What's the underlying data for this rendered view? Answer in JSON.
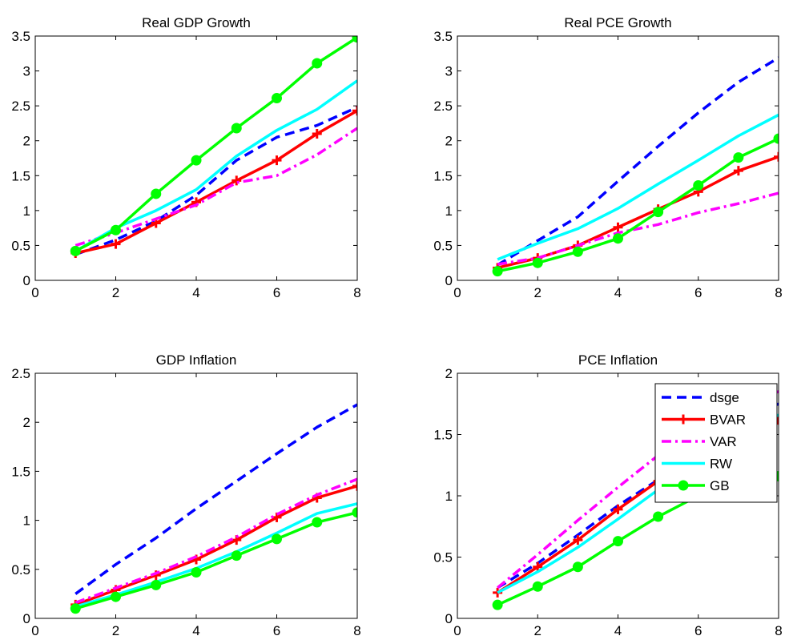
{
  "chart_data": [
    {
      "type": "line",
      "title": "Real GDP Growth",
      "x": [
        1,
        2,
        3,
        4,
        5,
        6,
        7,
        8
      ],
      "xlim": [
        0,
        8
      ],
      "ylim": [
        0,
        3.5
      ],
      "xticks": [
        0,
        2,
        4,
        6,
        8
      ],
      "yticks": [
        0,
        0.5,
        1,
        1.5,
        2,
        2.5,
        3,
        3.5
      ],
      "series": [
        {
          "key": "dsge",
          "values": [
            0.37,
            0.58,
            0.85,
            1.22,
            1.72,
            2.05,
            2.22,
            2.48
          ]
        },
        {
          "key": "BVAR",
          "values": [
            0.39,
            0.52,
            0.82,
            1.12,
            1.43,
            1.72,
            2.1,
            2.43
          ]
        },
        {
          "key": "VAR",
          "values": [
            0.5,
            0.68,
            0.88,
            1.08,
            1.4,
            1.5,
            1.8,
            2.18
          ]
        },
        {
          "key": "RW",
          "values": [
            0.42,
            0.75,
            1.0,
            1.3,
            1.78,
            2.15,
            2.45,
            2.86
          ]
        },
        {
          "key": "GB",
          "values": [
            0.42,
            0.72,
            1.24,
            1.72,
            2.18,
            2.61,
            3.11,
            3.48
          ]
        }
      ]
    },
    {
      "type": "line",
      "title": "Real PCE Growth",
      "x": [
        1,
        2,
        3,
        4,
        5,
        6,
        7,
        8
      ],
      "xlim": [
        0,
        8
      ],
      "ylim": [
        0,
        3.5
      ],
      "xticks": [
        0,
        2,
        4,
        6,
        8
      ],
      "yticks": [
        0,
        0.5,
        1,
        1.5,
        2,
        2.5,
        3,
        3.5
      ],
      "series": [
        {
          "key": "dsge",
          "values": [
            0.22,
            0.57,
            0.91,
            1.42,
            1.92,
            2.4,
            2.84,
            3.19
          ]
        },
        {
          "key": "BVAR",
          "values": [
            0.18,
            0.32,
            0.5,
            0.76,
            1.02,
            1.27,
            1.57,
            1.77
          ]
        },
        {
          "key": "VAR",
          "values": [
            0.23,
            0.32,
            0.5,
            0.68,
            0.8,
            0.97,
            1.1,
            1.25
          ]
        },
        {
          "key": "RW",
          "values": [
            0.3,
            0.53,
            0.74,
            1.03,
            1.38,
            1.72,
            2.07,
            2.37
          ]
        },
        {
          "key": "GB",
          "values": [
            0.13,
            0.25,
            0.41,
            0.6,
            0.98,
            1.36,
            1.76,
            2.03
          ]
        }
      ]
    },
    {
      "type": "line",
      "title": "GDP Inflation",
      "x": [
        1,
        2,
        3,
        4,
        5,
        6,
        7,
        8
      ],
      "xlim": [
        0,
        8
      ],
      "ylim": [
        0,
        2.5
      ],
      "xticks": [
        0,
        2,
        4,
        6,
        8
      ],
      "yticks": [
        0,
        0.5,
        1,
        1.5,
        2,
        2.5
      ],
      "series": [
        {
          "key": "dsge",
          "values": [
            0.25,
            0.55,
            0.82,
            1.12,
            1.4,
            1.68,
            1.95,
            2.18
          ]
        },
        {
          "key": "BVAR",
          "values": [
            0.14,
            0.29,
            0.44,
            0.6,
            0.8,
            1.03,
            1.23,
            1.35
          ]
        },
        {
          "key": "VAR",
          "values": [
            0.16,
            0.31,
            0.46,
            0.63,
            0.83,
            1.06,
            1.26,
            1.42
          ]
        },
        {
          "key": "RW",
          "values": [
            0.12,
            0.24,
            0.37,
            0.51,
            0.68,
            0.87,
            1.07,
            1.17
          ]
        },
        {
          "key": "GB",
          "values": [
            0.1,
            0.22,
            0.34,
            0.47,
            0.64,
            0.81,
            0.98,
            1.08
          ]
        }
      ]
    },
    {
      "type": "line",
      "title": "PCE Inflation",
      "x": [
        1,
        2,
        3,
        4,
        5,
        6,
        7,
        8
      ],
      "xlim": [
        0,
        8
      ],
      "ylim": [
        0,
        2
      ],
      "xticks": [
        0,
        2,
        4,
        6,
        8
      ],
      "yticks": [
        0,
        0.5,
        1,
        1.5,
        2
      ],
      "legend": {
        "position": "top-right",
        "entries": [
          {
            "key": "dsge",
            "label": "dsge"
          },
          {
            "key": "BVAR",
            "label": "BVAR"
          },
          {
            "key": "VAR",
            "label": "VAR"
          },
          {
            "key": "RW",
            "label": "RW"
          },
          {
            "key": "GB",
            "label": "GB"
          }
        ]
      },
      "series": [
        {
          "key": "dsge",
          "values": [
            0.25,
            0.45,
            0.68,
            0.92,
            1.13,
            1.37,
            1.6,
            1.75
          ]
        },
        {
          "key": "BVAR",
          "values": [
            0.21,
            0.42,
            0.64,
            0.89,
            1.12,
            1.3,
            1.47,
            1.62
          ]
        },
        {
          "key": "VAR",
          "values": [
            0.25,
            0.52,
            0.8,
            1.07,
            1.33,
            1.55,
            1.75,
            1.85
          ]
        },
        {
          "key": "RW",
          "values": [
            0.21,
            0.38,
            0.58,
            0.81,
            1.05,
            1.27,
            1.48,
            1.66
          ]
        },
        {
          "key": "GB",
          "values": [
            0.11,
            0.26,
            0.42,
            0.63,
            0.83,
            1.0,
            1.14,
            1.16
          ]
        }
      ]
    }
  ],
  "styles": {
    "dsge": {
      "color": "#0000ff",
      "dash": "dashed",
      "marker": "none"
    },
    "BVAR": {
      "color": "#ff0000",
      "dash": "solid",
      "marker": "plus"
    },
    "VAR": {
      "color": "#ff00ff",
      "dash": "dashdot",
      "marker": "none"
    },
    "RW": {
      "color": "#00ffff",
      "dash": "solid",
      "marker": "none"
    },
    "GB": {
      "color": "#00ff00",
      "dash": "solid",
      "marker": "circle"
    }
  }
}
